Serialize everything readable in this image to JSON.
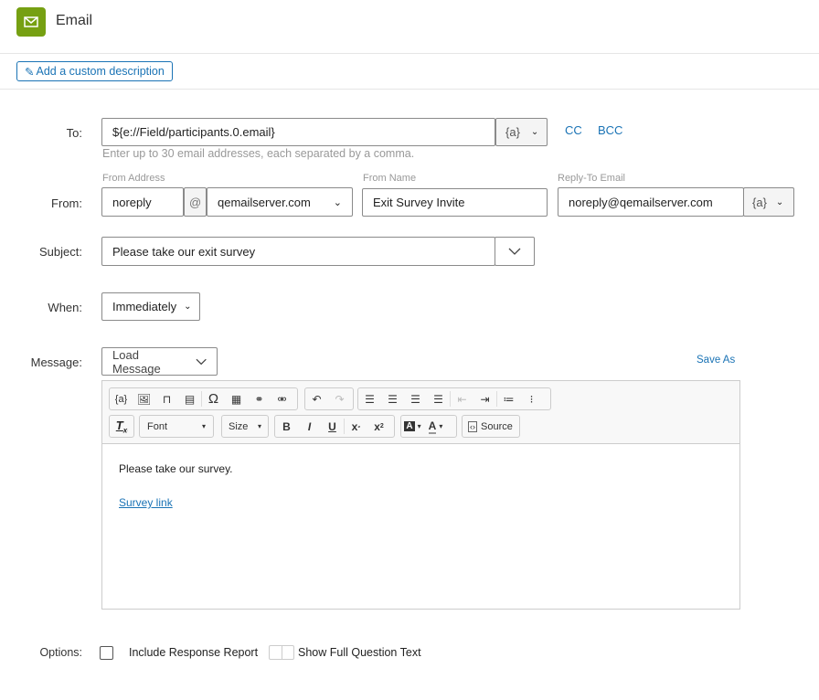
{
  "header": {
    "title": "Email",
    "accent": "#76a012",
    "description_button": "Add a custom description"
  },
  "to": {
    "label": "To:",
    "value": "${e://Field/participants.0.email}",
    "piped": "{a}",
    "cc": "CC",
    "bcc": "BCC",
    "hint": "Enter up to 30 email addresses, each separated by a comma."
  },
  "from": {
    "label": "From:",
    "from_address_label": "From Address",
    "local": "noreply",
    "at": "@",
    "domain": "qemailserver.com",
    "from_name_label": "From Name",
    "from_name": "Exit Survey Invite",
    "reply_to_label": "Reply-To Email",
    "reply_to": "noreply@qemailserver.com",
    "piped": "{a}"
  },
  "subject": {
    "label": "Subject:",
    "value": "Please take our exit survey"
  },
  "when": {
    "label": "When:",
    "value": "Immediately"
  },
  "message": {
    "label": "Message:",
    "load": "Load Message",
    "save_as": "Save As",
    "toolbar": {
      "piped": "{a}",
      "omega": "Ω",
      "font": "Font",
      "size": "Size",
      "bold": "B",
      "italic": "I",
      "underline": "U",
      "source": "Source"
    },
    "body_text": "Please take our survey.",
    "body_link": "Survey link"
  },
  "options": {
    "label": "Options:",
    "include_report": "Include Response Report",
    "include_report_checked": false,
    "show_full": "Show Full Question Text",
    "show_full_on": false
  }
}
